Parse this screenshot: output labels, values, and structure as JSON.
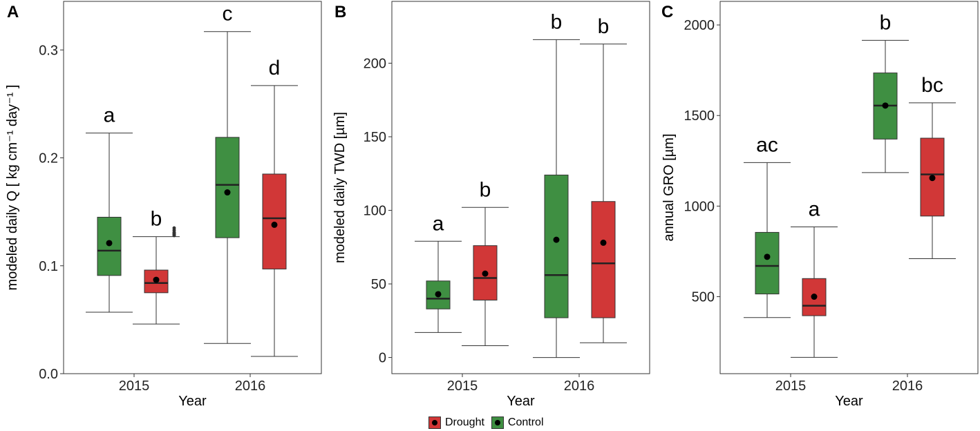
{
  "colors": {
    "drought": "#d13737",
    "control": "#3f8f42"
  },
  "legend": {
    "drought": "Drought",
    "control": "Control"
  },
  "chart_data": [
    {
      "type": "boxplot",
      "panel_label": "A",
      "xlabel": "Year",
      "ylabel": "modeled daily Q [ kg cm⁻¹ day⁻¹ ]",
      "ylim": [
        0.0,
        0.345
      ],
      "yticks": [
        0.0,
        0.1,
        0.2,
        0.3
      ],
      "ytick_labels": [
        "0.0",
        "0.1",
        "0.2",
        "0.3"
      ],
      "categories": [
        "2015",
        "2016"
      ],
      "boxes": [
        {
          "year": "2015",
          "group": "Control",
          "whisker_low": 0.057,
          "q1": 0.091,
          "median": 0.114,
          "q3": 0.145,
          "whisker_high": 0.223,
          "mean": 0.121,
          "letter": "a",
          "outliers": []
        },
        {
          "year": "2015",
          "group": "Drought",
          "whisker_low": 0.046,
          "q1": 0.075,
          "median": 0.084,
          "q3": 0.096,
          "whisker_high": 0.127,
          "mean": 0.087,
          "letter": "b",
          "outliers": [
            0.128,
            0.129,
            0.13,
            0.131,
            0.133,
            0.135
          ]
        },
        {
          "year": "2016",
          "group": "Control",
          "whisker_low": 0.028,
          "q1": 0.126,
          "median": 0.175,
          "q3": 0.219,
          "whisker_high": 0.317,
          "mean": 0.168,
          "letter": "c",
          "outliers": []
        },
        {
          "year": "2016",
          "group": "Drought",
          "whisker_low": 0.016,
          "q1": 0.097,
          "median": 0.144,
          "q3": 0.185,
          "whisker_high": 0.267,
          "mean": 0.138,
          "letter": "d",
          "outliers": []
        }
      ]
    },
    {
      "type": "boxplot",
      "panel_label": "B",
      "xlabel": "Year",
      "ylabel": "modeled  daily TWD [µm]",
      "ylim": [
        -11,
        242
      ],
      "yticks": [
        0,
        50,
        100,
        150,
        200
      ],
      "ytick_labels": [
        "0",
        "50",
        "100",
        "150",
        "200"
      ],
      "categories": [
        "2015",
        "2016"
      ],
      "boxes": [
        {
          "year": "2015",
          "group": "Control",
          "whisker_low": 17,
          "q1": 33,
          "median": 40,
          "q3": 52,
          "whisker_high": 79,
          "mean": 43,
          "letter": "a",
          "outliers": []
        },
        {
          "year": "2015",
          "group": "Drought",
          "whisker_low": 8,
          "q1": 39,
          "median": 54,
          "q3": 76,
          "whisker_high": 102,
          "mean": 57,
          "letter": "b",
          "outliers": []
        },
        {
          "year": "2016",
          "group": "Control",
          "whisker_low": 0,
          "q1": 27,
          "median": 56,
          "q3": 124,
          "whisker_high": 216,
          "mean": 80,
          "letter": "b",
          "outliers": []
        },
        {
          "year": "2016",
          "group": "Drought",
          "whisker_low": 10,
          "q1": 27,
          "median": 64,
          "q3": 106,
          "whisker_high": 213,
          "mean": 78,
          "letter": "b",
          "outliers": []
        }
      ]
    },
    {
      "type": "boxplot",
      "panel_label": "C",
      "xlabel": "Year",
      "ylabel": "annual GRO [µm]",
      "ylim": [
        75,
        2130
      ],
      "yticks": [
        500,
        1000,
        1500,
        2000
      ],
      "ytick_labels": [
        "500",
        "1000",
        "1500",
        "2000"
      ],
      "categories": [
        "2015",
        "2016"
      ],
      "boxes": [
        {
          "year": "2015",
          "group": "Control",
          "whisker_low": 385,
          "q1": 515,
          "median": 670,
          "q3": 855,
          "whisker_high": 1240,
          "mean": 720,
          "letter": "ac",
          "outliers": []
        },
        {
          "year": "2015",
          "group": "Drought",
          "whisker_low": 165,
          "q1": 395,
          "median": 450,
          "q3": 600,
          "whisker_high": 885,
          "mean": 500,
          "letter": "a",
          "outliers": []
        },
        {
          "year": "2016",
          "group": "Control",
          "whisker_low": 1185,
          "q1": 1370,
          "median": 1555,
          "q3": 1735,
          "whisker_high": 1915,
          "mean": 1555,
          "letter": "b",
          "outliers": []
        },
        {
          "year": "2016",
          "group": "Drought",
          "whisker_low": 710,
          "q1": 945,
          "median": 1175,
          "q3": 1375,
          "whisker_high": 1570,
          "mean": 1155,
          "letter": "bc",
          "outliers": []
        }
      ]
    }
  ]
}
